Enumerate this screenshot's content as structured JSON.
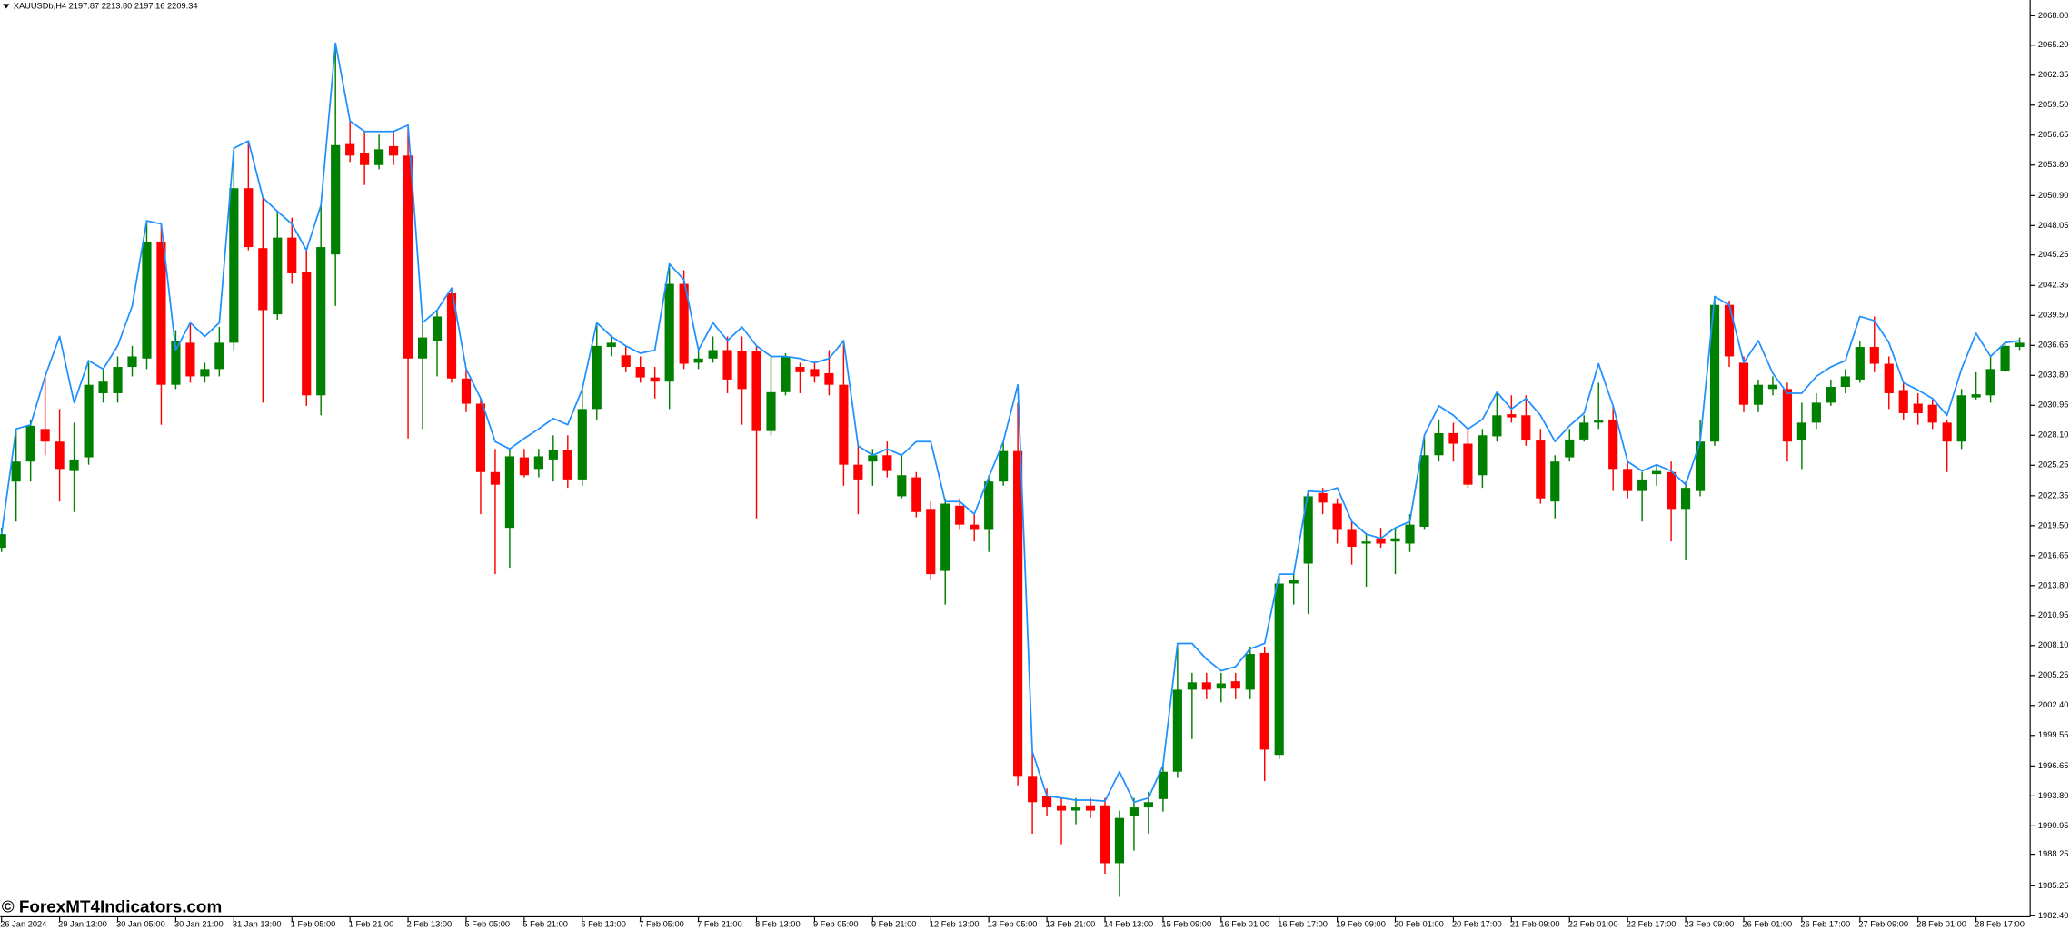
{
  "chart_data": {
    "type": "candlestick",
    "title": "XAUUSDb,H4  2197.87 2213.80 2197.16 2209.34",
    "watermark": "© ForexMT4Indicators.com",
    "up_color": "#008000",
    "down_color": "#ff0000",
    "x": [
      "26 Jan 2024",
      null,
      null,
      null,
      "29 Jan 13:00",
      null,
      null,
      null,
      "30 Jan 05:00",
      null,
      null,
      null,
      "30 Jan 21:00",
      null,
      null,
      null,
      "31 Jan 13:00",
      null,
      null,
      null,
      "1 Feb 05:00",
      null,
      null,
      null,
      "1 Feb 21:00",
      null,
      null,
      null,
      "2 Feb 13:00",
      null,
      null,
      null,
      "5 Feb 05:00",
      null,
      null,
      null,
      "5 Feb 21:00",
      null,
      null,
      null,
      "6 Feb 13:00",
      null,
      null,
      null,
      "7 Feb 05:00",
      null,
      null,
      null,
      "7 Feb 21:00",
      null,
      null,
      null,
      "8 Feb 13:00",
      null,
      null,
      null,
      "9 Feb 05:00",
      null,
      null,
      null,
      "9 Feb 21:00",
      null,
      null,
      null,
      "12 Feb 13:00",
      null,
      null,
      null,
      "13 Feb 05:00",
      null,
      null,
      null,
      "13 Feb 21:00",
      null,
      null,
      null,
      "14 Feb 13:00",
      null,
      null,
      null,
      "15 Feb 09:00",
      null,
      null,
      null,
      "16 Feb 01:00",
      null,
      null,
      null,
      "16 Feb 17:00",
      null,
      null,
      null,
      "19 Feb 09:00",
      null,
      null,
      null,
      "20 Feb 01:00",
      null,
      null,
      null,
      "20 Feb 17:00",
      null,
      null,
      null,
      "21 Feb 09:00",
      null,
      null,
      null,
      "22 Feb 01:00",
      null,
      null,
      null,
      "22 Feb 17:00",
      null,
      null,
      null,
      "23 Feb 09:00",
      null,
      null,
      null,
      "26 Feb 01:00",
      null,
      null,
      null,
      "26 Feb 17:00",
      null,
      null,
      null,
      "27 Feb 09:00",
      null,
      null,
      null,
      "28 Feb 01:00",
      null,
      null,
      null,
      "28 Feb 17:00",
      null,
      null,
      null
    ],
    "open": [
      2017.4,
      2023.7,
      2025.6,
      2028.7,
      2027.5,
      2024.7,
      2026.0,
      2032.1,
      2032.1,
      2034.6,
      2035.4,
      2046.5,
      2032.9,
      2036.9,
      2033.7,
      2034.4,
      2036.9,
      2051.6,
      2045.9,
      2039.6,
      2046.9,
      2043.6,
      2031.9,
      2045.3,
      2055.8,
      2054.9,
      2053.8,
      2055.6,
      2054.7,
      2035.4,
      2037.1,
      2041.6,
      2033.5,
      2031.1,
      2024.6,
      2019.3,
      2026.0,
      2024.9,
      2025.8,
      2026.7,
      2023.9,
      2030.6,
      2036.5,
      2035.7,
      2034.6,
      2033.6,
      2033.2,
      2042.5,
      2035.0,
      2035.4,
      2036.2,
      2036.1,
      2036.1,
      2028.5,
      2032.2,
      2034.6,
      2034.4,
      2034.0,
      2032.9,
      2025.3,
      2025.6,
      2026.2,
      2022.3,
      2024.1,
      2021.1,
      2015.2,
      2021.4,
      2019.6,
      2019.1,
      2023.7,
      2026.6,
      1995.7,
      1993.8,
      1992.9,
      1992.4,
      1992.9,
      1992.9,
      1987.4,
      1991.9,
      1992.7,
      1993.5,
      1996.1,
      2003.9,
      2004.6,
      2004.0,
      2004.7,
      2003.9,
      2007.4,
      1997.7,
      2014.0,
      2015.9,
      2022.6,
      2021.6,
      2019.1,
      2017.8,
      2018.3,
      2018.0,
      2017.8,
      2019.4,
      2026.2,
      2028.3,
      2027.3,
      2024.3,
      2028.0,
      2030.1,
      2030.0,
      2027.6,
      2021.8,
      2026.0,
      2027.7,
      2029.3,
      2029.6,
      2024.9,
      2022.8,
      2024.4,
      2024.6,
      2021.1,
      2022.8,
      2027.5,
      2040.5,
      2035.0,
      2031.0,
      2032.5,
      2032.5,
      2027.6,
      2029.3,
      2031.2,
      2032.7,
      2033.4,
      2036.5,
      2034.9,
      2032.4,
      2031.1,
      2031.0,
      2029.3,
      2027.5,
      2031.7,
      2031.9,
      2034.2,
      2036.5
    ],
    "high": [
      2019.3,
      2028.7,
      2029.6,
      2033.7,
      2030.6,
      2029.3,
      2035.0,
      2034.4,
      2035.6,
      2036.6,
      2048.4,
      2048.2,
      2038.1,
      2038.8,
      2035.0,
      2038.4,
      2055.4,
      2056.0,
      2050.7,
      2049.4,
      2048.8,
      2045.7,
      2050.0,
      2065.1,
      2058.0,
      2057.0,
      2056.7,
      2057.0,
      2057.6,
      2038.8,
      2040.0,
      2042.1,
      2034.4,
      2031.6,
      2026.8,
      2026.8,
      2026.8,
      2026.8,
      2028.1,
      2028.1,
      2032.5,
      2038.8,
      2037.5,
      2036.6,
      2035.6,
      2034.6,
      2044.4,
      2043.8,
      2036.2,
      2037.5,
      2037.5,
      2037.5,
      2036.6,
      2035.6,
      2035.9,
      2035.0,
      2035.0,
      2036.2,
      2036.9,
      2027.1,
      2026.8,
      2027.5,
      2026.2,
      2024.6,
      2021.8,
      2022.1,
      2022.1,
      2020.6,
      2024.3,
      2027.5,
      2031.2,
      1998.0,
      1994.5,
      1993.6,
      1993.6,
      1993.6,
      1993.6,
      1992.4,
      1993.6,
      1994.2,
      1996.7,
      2008.0,
      2005.5,
      2005.5,
      2005.5,
      2005.5,
      2008.0,
      2008.0,
      2014.9,
      2014.9,
      2022.8,
      2023.1,
      2022.1,
      2019.9,
      2018.7,
      2019.3,
      2019.3,
      2020.6,
      2028.1,
      2029.6,
      2029.3,
      2028.7,
      2028.7,
      2032.1,
      2031.9,
      2031.9,
      2028.7,
      2026.2,
      2028.7,
      2030.0,
      2033.1,
      2030.9,
      2025.6,
      2024.6,
      2025.3,
      2025.6,
      2023.7,
      2029.6,
      2041.3,
      2040.9,
      2035.6,
      2033.4,
      2033.7,
      2033.1,
      2031.2,
      2032.1,
      2033.4,
      2034.4,
      2037.1,
      2039.4,
      2035.6,
      2033.1,
      2032.1,
      2031.5,
      2029.6,
      2032.5,
      2034.1,
      2035.6,
      2037.1,
      2037.4
    ],
    "low": [
      2017.0,
      2019.9,
      2023.7,
      2026.2,
      2021.8,
      2020.8,
      2025.3,
      2031.2,
      2031.2,
      2033.7,
      2034.4,
      2029.1,
      2032.5,
      2033.1,
      2033.1,
      2033.7,
      2036.2,
      2045.7,
      2031.2,
      2039.1,
      2042.5,
      2030.9,
      2030.0,
      2040.4,
      2054.1,
      2051.9,
      2053.4,
      2053.8,
      2027.8,
      2028.7,
      2033.7,
      2033.1,
      2030.3,
      2020.6,
      2014.9,
      2015.5,
      2024.1,
      2024.1,
      2023.7,
      2023.1,
      2023.3,
      2029.6,
      2035.6,
      2034.1,
      2033.1,
      2031.6,
      2030.6,
      2034.4,
      2034.4,
      2035.0,
      2032.1,
      2029.1,
      2020.2,
      2028.1,
      2031.9,
      2032.1,
      2033.1,
      2031.9,
      2023.3,
      2020.6,
      2023.3,
      2024.1,
      2022.1,
      2020.3,
      2014.3,
      2012.0,
      2019.1,
      2018.0,
      2017.0,
      2023.3,
      1994.8,
      1990.2,
      1991.9,
      1989.2,
      1991.1,
      1991.7,
      1986.4,
      1984.2,
      1988.6,
      1990.2,
      1992.3,
      1995.5,
      1999.2,
      2003.0,
      2002.7,
      2003.0,
      2003.0,
      1995.2,
      1997.3,
      2012.0,
      2011.1,
      2020.6,
      2017.8,
      2015.8,
      2013.7,
      2017.4,
      2014.9,
      2017.0,
      2019.1,
      2025.6,
      2025.6,
      2023.1,
      2023.1,
      2027.5,
      2029.3,
      2027.1,
      2021.6,
      2020.2,
      2025.6,
      2027.5,
      2028.7,
      2022.8,
      2022.1,
      2019.9,
      2023.3,
      2018.0,
      2016.2,
      2022.3,
      2027.1,
      2034.6,
      2030.3,
      2030.3,
      2031.9,
      2025.6,
      2024.9,
      2028.7,
      2030.9,
      2032.1,
      2033.1,
      2034.1,
      2030.6,
      2029.6,
      2029.1,
      2028.7,
      2024.6,
      2026.8,
      2031.5,
      2031.2,
      2034.1,
      2036.2
    ],
    "close": [
      2018.7,
      2025.6,
      2029.0,
      2027.5,
      2024.9,
      2025.8,
      2032.9,
      2033.2,
      2034.6,
      2035.6,
      2046.5,
      2032.9,
      2037.1,
      2033.7,
      2034.4,
      2036.9,
      2051.6,
      2046.0,
      2040.0,
      2046.9,
      2043.5,
      2031.9,
      2046.0,
      2055.7,
      2054.7,
      2053.8,
      2055.3,
      2054.7,
      2035.4,
      2037.4,
      2039.4,
      2033.5,
      2031.1,
      2024.6,
      2023.4,
      2026.1,
      2024.3,
      2026.1,
      2026.7,
      2023.9,
      2030.6,
      2036.6,
      2036.9,
      2034.6,
      2033.6,
      2033.2,
      2042.5,
      2034.9,
      2035.4,
      2036.2,
      2033.4,
      2032.5,
      2028.5,
      2032.2,
      2035.6,
      2034.1,
      2033.7,
      2032.9,
      2025.3,
      2023.9,
      2026.2,
      2024.7,
      2024.3,
      2020.8,
      2014.9,
      2021.6,
      2019.6,
      2019.1,
      2023.7,
      2026.6,
      1995.7,
      1993.2,
      1992.7,
      1992.4,
      1992.7,
      1992.4,
      1987.4,
      1991.7,
      1992.7,
      1993.2,
      1996.1,
      2003.9,
      2004.6,
      2003.9,
      2004.5,
      2004.0,
      2007.3,
      1998.2,
      2014.0,
      2014.3,
      2022.3,
      2021.7,
      2019.1,
      2017.5,
      2018.0,
      2017.8,
      2018.3,
      2019.6,
      2026.2,
      2028.3,
      2027.3,
      2023.4,
      2028.1,
      2030.0,
      2029.8,
      2027.6,
      2022.1,
      2025.6,
      2027.7,
      2029.3,
      2029.5,
      2024.9,
      2022.8,
      2023.9,
      2024.7,
      2021.1,
      2023.1,
      2027.5,
      2040.5,
      2035.6,
      2031.0,
      2032.9,
      2032.9,
      2027.5,
      2029.3,
      2031.2,
      2032.7,
      2033.7,
      2036.5,
      2034.9,
      2032.1,
      2030.2,
      2030.2,
      2029.3,
      2027.5,
      2031.9,
      2032.0,
      2034.4,
      2036.6,
      2036.9
    ],
    "overlay": {
      "type": "line",
      "color": "#1e90ff",
      "values": [
        2018.7,
        2028.7,
        2029.1,
        2033.7,
        2037.5,
        2031.2,
        2035.2,
        2034.4,
        2036.6,
        2040.4,
        2048.5,
        2048.2,
        2036.2,
        2038.8,
        2037.5,
        2038.8,
        2055.4,
        2056.1,
        2050.7,
        2049.4,
        2048.2,
        2045.7,
        2050.0,
        2065.4,
        2058.0,
        2057.0,
        2057.0,
        2057.0,
        2057.6,
        2038.8,
        2040.0,
        2042.1,
        2034.4,
        2031.6,
        2027.5,
        2026.8,
        2027.8,
        2028.7,
        2029.7,
        2029.1,
        2032.5,
        2038.8,
        2037.5,
        2036.6,
        2035.9,
        2036.2,
        2044.4,
        2042.9,
        2036.2,
        2038.8,
        2037.1,
        2038.4,
        2036.6,
        2035.6,
        2035.6,
        2035.4,
        2035.0,
        2035.4,
        2037.1,
        2027.1,
        2026.2,
        2026.8,
        2026.2,
        2027.5,
        2027.5,
        2021.8,
        2021.8,
        2020.6,
        2024.1,
        2027.5,
        2032.9,
        1998.0,
        1993.8,
        1993.6,
        1993.4,
        1993.4,
        1993.3,
        1996.1,
        1993.2,
        1993.6,
        1996.7,
        2008.3,
        2008.3,
        2006.8,
        2005.7,
        2006.1,
        2007.8,
        2008.3,
        2014.9,
        2014.9,
        2022.8,
        2022.7,
        2023.1,
        2019.9,
        2018.7,
        2018.3,
        2019.3,
        2019.9,
        2028.1,
        2030.9,
        2030.0,
        2028.7,
        2029.6,
        2032.2,
        2030.6,
        2031.6,
        2030.0,
        2027.5,
        2029.0,
        2030.2,
        2034.9,
        2030.9,
        2025.6,
        2024.7,
        2025.3,
        2024.7,
        2023.4,
        2027.5,
        2041.3,
        2040.5,
        2035.0,
        2037.1,
        2034.0,
        2032.1,
        2032.1,
        2033.7,
        2034.6,
        2035.2,
        2039.4,
        2039.0,
        2036.9,
        2033.1,
        2032.4,
        2031.6,
        2030.0,
        2034.4,
        2037.8,
        2035.6,
        2036.9,
        2037.1
      ]
    },
    "ylim": [
      1982.3,
      2069.5
    ],
    "yticks": [
      {
        "value": 2068,
        "label": "2068.00"
      },
      {
        "value": 2065.2,
        "label": "2065.20"
      },
      {
        "value": 2062.35,
        "label": "2062.35"
      },
      {
        "value": 2059.5,
        "label": "2059.50"
      },
      {
        "value": 2056.65,
        "label": "2056.65"
      },
      {
        "value": 2053.8,
        "label": "2053.80"
      },
      {
        "value": 2050.9,
        "label": "2050.90"
      },
      {
        "value": 2048.05,
        "label": "2048.05"
      },
      {
        "value": 2045.25,
        "label": "2045.25"
      },
      {
        "value": 2042.35,
        "label": "2042.35"
      },
      {
        "value": 2039.5,
        "label": "2039.50"
      },
      {
        "value": 2036.65,
        "label": "2036.65"
      },
      {
        "value": 2033.8,
        "label": "2033.80"
      },
      {
        "value": 2030.95,
        "label": "2030.95"
      },
      {
        "value": 2028.1,
        "label": "2028.10"
      },
      {
        "value": 2025.25,
        "label": "2025.25"
      },
      {
        "value": 2022.35,
        "label": "2022.35"
      },
      {
        "value": 2019.5,
        "label": "2019.50"
      },
      {
        "value": 2016.65,
        "label": "2016.65"
      },
      {
        "value": 2013.8,
        "label": "2013.80"
      },
      {
        "value": 2010.95,
        "label": "2010.95"
      },
      {
        "value": 2008.1,
        "label": "2008.10"
      },
      {
        "value": 2005.25,
        "label": "2005.25"
      },
      {
        "value": 2002.4,
        "label": "2002.40"
      },
      {
        "value": 1999.55,
        "label": "1999.55"
      },
      {
        "value": 1996.65,
        "label": "1996.65"
      },
      {
        "value": 1993.8,
        "label": "1993.80"
      },
      {
        "value": 1990.95,
        "label": "1990.95"
      },
      {
        "value": 1988.25,
        "label": "1988.25"
      },
      {
        "value": 1985.25,
        "label": "1985.25"
      },
      {
        "value": 1982.4,
        "label": "1982.40"
      }
    ],
    "grid": false
  }
}
